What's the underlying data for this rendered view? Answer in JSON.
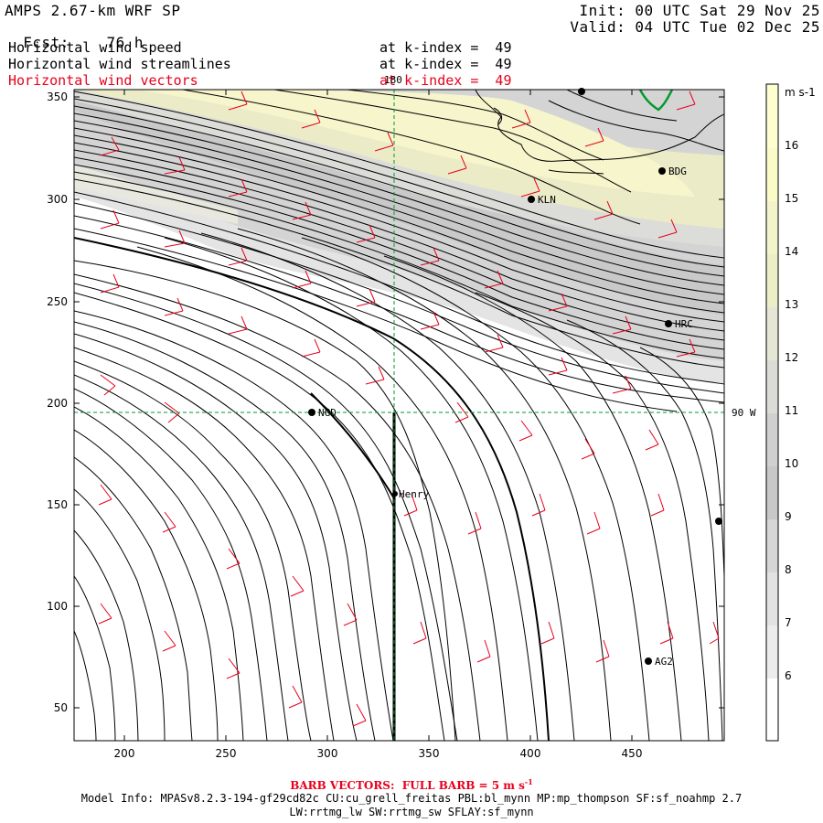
{
  "header": {
    "model": "AMPS 2.67-km WRF SP",
    "fcst_label": "Fcst:",
    "fcst_value": "76 h",
    "init": "Init: 00 UTC Sat 29 Nov 25",
    "valid": "Valid: 04 UTC Tue 02 Dec 25"
  },
  "fields": [
    {
      "name": "Horizontal wind speed",
      "level": "at k-index =  49",
      "color": "#000000"
    },
    {
      "name": "Horizontal wind streamlines",
      "level": "at k-index =  49",
      "color": "#000000"
    },
    {
      "name": "Horizontal wind vectors",
      "level": "at k-index =  49",
      "color": "#e8001c"
    }
  ],
  "map": {
    "meridian_label": "180",
    "parallel_label": "90 W",
    "x_ticks": [
      "200",
      "250",
      "300",
      "350",
      "400",
      "450"
    ],
    "y_ticks": [
      "350",
      "300",
      "250",
      "200",
      "150",
      "100",
      "50"
    ],
    "stations": [
      {
        "id": "BDG",
        "x": 466,
        "y": 314
      },
      {
        "id": "KLN",
        "x": 403,
        "y": 300
      },
      {
        "id": "HRC",
        "x": 469,
        "y": 239
      },
      {
        "id": "NGD",
        "x": 294,
        "y": 195
      },
      {
        "id": "Henry",
        "x": 333,
        "y": 155
      },
      {
        "id": "AG2",
        "x": 459,
        "y": 73
      }
    ]
  },
  "colorbar": {
    "unit": "m s-1",
    "labels": [
      "16",
      "15",
      "14",
      "13",
      "12",
      "11",
      "10",
      "9",
      "8",
      "7",
      "6"
    ],
    "colors": [
      "#ffffcc",
      "#f8f8c2",
      "#f1f1cd",
      "#eaeac8",
      "#e3e3d7",
      "#dcdcd8",
      "#d0d0d0",
      "#c8c8c8",
      "#d8d8d8",
      "#e4e4e4",
      "#eeeeee",
      "#ffffff"
    ]
  },
  "footer": {
    "barb_note": "BARB VECTORS:  FULL BARB = 5 m s",
    "model_info": "Model Info: MPASv8.2.3-194-gf29cd82c CU:cu_grell_freitas PBL:bl_mynn MP:mp_thompson SF:sf_noahmp 2.7",
    "model_info_2": "LW:rrtmg_lw SW:rrtmg_sw SFLAY:sf_mynn"
  }
}
